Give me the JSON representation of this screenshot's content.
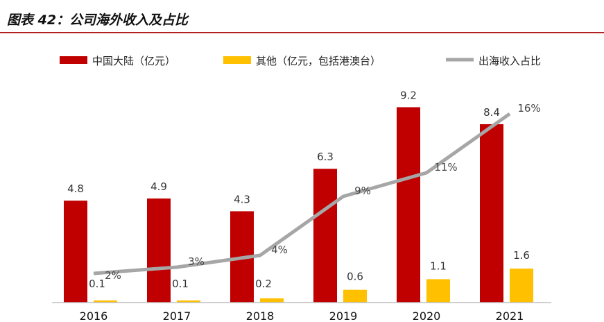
{
  "title": "图表 42：公司海外收入及占比",
  "colors": {
    "mainland": "#c00000",
    "other": "#ffc000",
    "ratio": "#a6a6a6",
    "title_rule": "#b22222"
  },
  "chart_data": {
    "type": "bar",
    "categories": [
      "2016",
      "2017",
      "2018",
      "2019",
      "2020",
      "2021"
    ],
    "series": [
      {
        "name": "中国大陆（亿元）",
        "type": "bar",
        "values": [
          4.8,
          4.9,
          4.3,
          6.3,
          9.2,
          8.4
        ],
        "labels": [
          "4.8",
          "4.9",
          "4.3",
          "6.3",
          "9.2",
          "8.4"
        ]
      },
      {
        "name": "其他（亿元，包括港澳台）",
        "type": "bar",
        "values": [
          0.1,
          0.1,
          0.2,
          0.6,
          1.1,
          1.6
        ],
        "labels": [
          "0.1",
          "0.1",
          "0.2",
          "0.6",
          "1.1",
          "1.6"
        ]
      },
      {
        "name": "出海收入占比",
        "type": "line",
        "axis": "secondary",
        "values": [
          2,
          3,
          4,
          9,
          11,
          16
        ],
        "labels": [
          "2%",
          "3%",
          "4%",
          "9%",
          "11%",
          "16%"
        ]
      }
    ],
    "ylim": [
      0,
      10
    ],
    "y2lim": [
      0,
      18
    ],
    "legend_position": "top",
    "grid": false
  }
}
